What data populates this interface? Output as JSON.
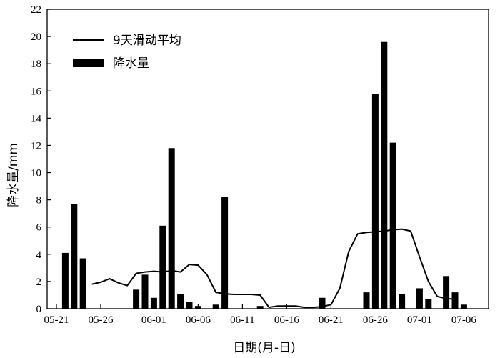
{
  "chart_data": {
    "type": "bar",
    "title": "",
    "xlabel": "日期(月-日)",
    "ylabel": "降水量/mm",
    "ylim": [
      0,
      22
    ],
    "y_ticks": [
      0,
      2,
      4,
      6,
      8,
      10,
      12,
      14,
      16,
      18,
      20,
      22
    ],
    "x_tick_labels": [
      "05-21",
      "05-26",
      "06-01",
      "06-06",
      "06-11",
      "06-16",
      "06-21",
      "06-26",
      "07-01",
      "07-06"
    ],
    "grid": false,
    "legend_position": "top-left",
    "x": [
      "05-21",
      "05-22",
      "05-23",
      "05-24",
      "05-25",
      "05-26",
      "05-27",
      "05-28",
      "05-29",
      "05-30",
      "05-31",
      "06-01",
      "06-02",
      "06-03",
      "06-04",
      "06-05",
      "06-06",
      "06-07",
      "06-08",
      "06-09",
      "06-10",
      "06-11",
      "06-12",
      "06-13",
      "06-14",
      "06-15",
      "06-16",
      "06-17",
      "06-18",
      "06-19",
      "06-20",
      "06-21",
      "06-22",
      "06-23",
      "06-24",
      "06-25",
      "06-26",
      "06-27",
      "06-28",
      "06-29",
      "06-30",
      "07-01",
      "07-02",
      "07-03",
      "07-04",
      "07-05",
      "07-06",
      "07-07",
      "07-08"
    ],
    "series": [
      {
        "name": "降水量",
        "kind": "bar",
        "color": "#000000",
        "values": [
          0,
          4.1,
          7.7,
          3.7,
          0,
          0,
          0,
          0,
          0,
          1.4,
          2.5,
          0.8,
          6.1,
          11.8,
          1.1,
          0.5,
          0.2,
          0,
          0.3,
          8.2,
          0,
          0,
          0,
          0.2,
          0,
          0,
          0,
          0,
          0,
          0,
          0.8,
          0,
          0,
          0,
          0,
          1.2,
          15.8,
          19.6,
          12.2,
          1.1,
          0,
          1.5,
          0.7,
          0,
          2.4,
          1.2,
          0.3,
          0,
          0
        ]
      },
      {
        "name": "9天滑动平均",
        "kind": "line",
        "color": "#000000",
        "values": [
          null,
          null,
          null,
          null,
          1.8,
          1.95,
          2.2,
          1.9,
          1.7,
          2.6,
          2.7,
          2.75,
          2.7,
          2.8,
          2.7,
          3.25,
          3.2,
          2.5,
          1.2,
          1.1,
          1.05,
          1.05,
          1.05,
          1.0,
          0.1,
          0.2,
          0.2,
          0.2,
          0.1,
          0.1,
          0.15,
          0.3,
          1.5,
          4.2,
          5.5,
          5.6,
          5.65,
          5.7,
          5.8,
          5.85,
          5.7,
          3.8,
          2.0,
          0.9,
          0.75,
          0.7,
          null,
          null,
          null
        ]
      }
    ]
  }
}
